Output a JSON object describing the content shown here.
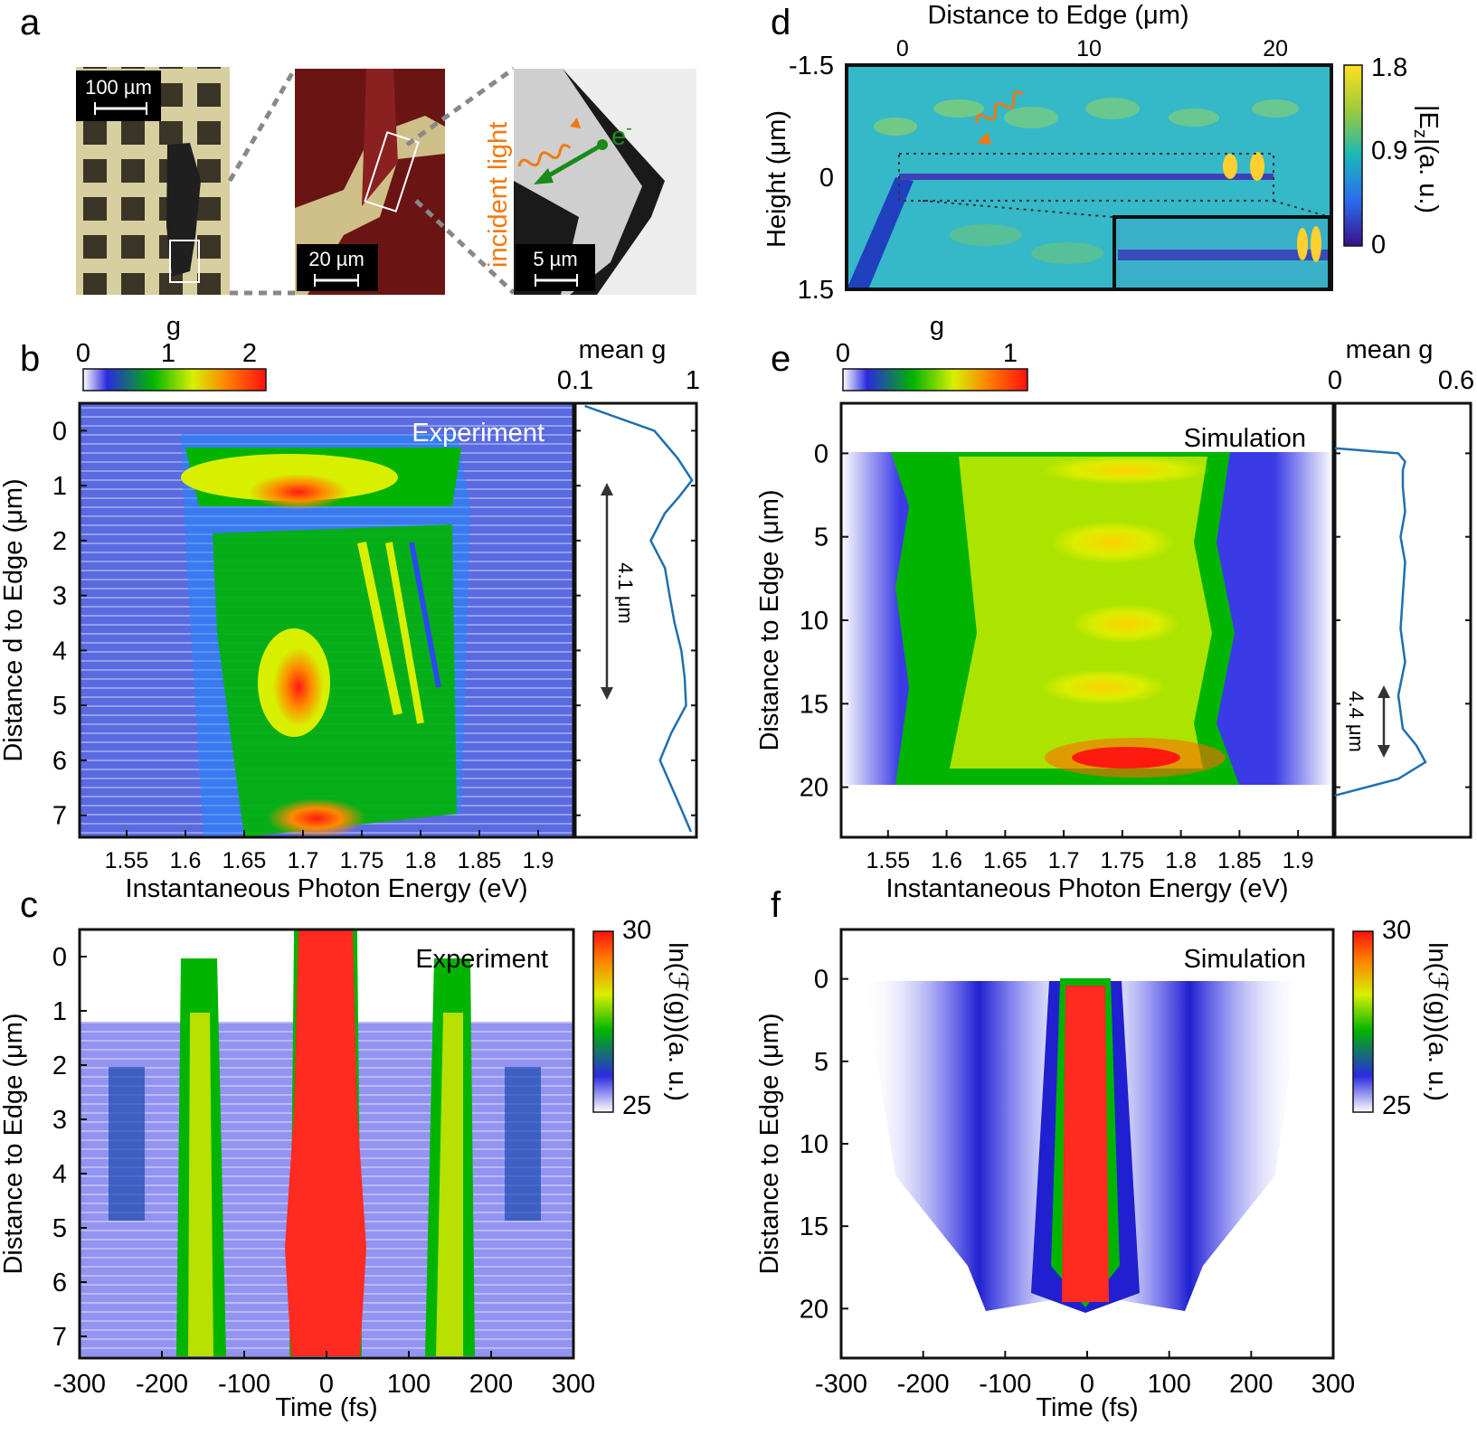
{
  "panel_letters": [
    "a",
    "b",
    "c",
    "d",
    "e",
    "f"
  ],
  "panel_a": {
    "scale_bars": [
      "100 µm",
      "20 µm",
      "5 µm"
    ],
    "incident_light_label": "incident light",
    "electron_label": "e",
    "electron_sup": "-"
  },
  "colorscale_g": {
    "title": "g",
    "ticks_b": [
      "0",
      "1",
      "2"
    ],
    "ticks_e": [
      "0",
      "1"
    ]
  },
  "chart_data": [
    {
      "id": "d",
      "type": "heatmap",
      "title": "",
      "xlabel": "Distance to Edge (μm)",
      "ylabel": "Height (μm)",
      "xticks": [
        "0",
        "10",
        "20"
      ],
      "yticks": [
        "-1.5",
        "0",
        "1.5"
      ],
      "xlim": [
        -3,
        23
      ],
      "ylim": [
        -1.5,
        1.5
      ],
      "colorbar": {
        "label_main": "|E",
        "label_sub": "z",
        "label_end": "|(a. u.)",
        "ticks": [
          "1.8",
          "0.9",
          "0"
        ],
        "range": [
          0,
          1.8
        ]
      }
    },
    {
      "id": "b",
      "type": "heatmap",
      "annotation": "Experiment",
      "xlabel": "Instantaneous Photon Energy (eV)",
      "ylabel": "Distance d to Edge (μm)",
      "xticks": [
        "1.55",
        "1.6",
        "1.65",
        "1.7",
        "1.75",
        "1.8",
        "1.85",
        "1.9"
      ],
      "yticks": [
        "0",
        "1",
        "2",
        "3",
        "4",
        "5",
        "6",
        "7"
      ],
      "xlim": [
        1.51,
        1.93
      ],
      "ylim": [
        -0.5,
        7.4
      ],
      "colorbar": {
        "ticks": [
          "0",
          "1",
          "2"
        ],
        "range": [
          0,
          2
        ]
      },
      "side_plot": {
        "title": "mean g",
        "xticks": [
          "0.1",
          "1"
        ],
        "annotation": "4.1 μm",
        "profile_d": [
          -0.45,
          0,
          0.5,
          0.9,
          1.2,
          1.5,
          2.0,
          2.5,
          3.0,
          3.5,
          4.0,
          4.5,
          5.0,
          5.5,
          6.0,
          6.4,
          6.8,
          7.3
        ],
        "profile_g": [
          0.12,
          0.45,
          0.7,
          0.92,
          0.72,
          0.55,
          0.42,
          0.55,
          0.6,
          0.66,
          0.75,
          0.8,
          0.82,
          0.62,
          0.5,
          0.6,
          0.72,
          0.9
        ]
      }
    },
    {
      "id": "e",
      "type": "heatmap",
      "annotation": "Simulation",
      "xlabel": "Instantaneous Photon Energy (eV)",
      "ylabel": "Distance to Edge (μm)",
      "xticks": [
        "1.55",
        "1.6",
        "1.65",
        "1.7",
        "1.75",
        "1.8",
        "1.85",
        "1.9"
      ],
      "yticks": [
        "0",
        "5",
        "10",
        "15",
        "20"
      ],
      "xlim": [
        1.51,
        1.93
      ],
      "ylim": [
        -3,
        23
      ],
      "colorbar": {
        "ticks": [
          "0",
          "1"
        ],
        "range": [
          0,
          1.1
        ]
      },
      "side_plot": {
        "title": "mean g",
        "xticks": [
          "0",
          "0.6"
        ],
        "annotation": "4.4 μm",
        "profile_d": [
          -0.3,
          0,
          0.5,
          1.0,
          2.0,
          3.5,
          5.0,
          6.5,
          8.5,
          10.5,
          12.5,
          14.5,
          16.5,
          17.5,
          18.5,
          19.5,
          20.5
        ],
        "profile_g": [
          0.0,
          0.28,
          0.31,
          0.3,
          0.3,
          0.31,
          0.29,
          0.31,
          0.3,
          0.29,
          0.31,
          0.28,
          0.3,
          0.36,
          0.4,
          0.28,
          0.0
        ]
      }
    },
    {
      "id": "c",
      "type": "heatmap",
      "annotation": "Experiment",
      "xlabel": "Time (fs)",
      "ylabel": "Distance to Edge (μm)",
      "xticks": [
        "-300",
        "-200",
        "-100",
        "0",
        "100",
        "200",
        "300"
      ],
      "yticks": [
        "0",
        "1",
        "2",
        "3",
        "4",
        "5",
        "6",
        "7"
      ],
      "xlim": [
        -300,
        300
      ],
      "ylim": [
        -0.5,
        7.4
      ],
      "colorbar": {
        "label": "ln(ℱ(g))(a. u.)",
        "ticks": [
          "30",
          "25"
        ],
        "range": [
          25,
          30
        ]
      }
    },
    {
      "id": "f",
      "type": "heatmap",
      "annotation": "Simulation",
      "xlabel": "Time (fs)",
      "ylabel": "Distance to Edge (μm)",
      "xticks": [
        "-300",
        "-200",
        "-100",
        "0",
        "100",
        "200",
        "300"
      ],
      "yticks": [
        "0",
        "5",
        "10",
        "15",
        "20"
      ],
      "xlim": [
        -300,
        300
      ],
      "ylim": [
        -3,
        23
      ],
      "colorbar": {
        "label": "ln(ℱ(g))(a. u.)",
        "ticks": [
          "30",
          "25"
        ],
        "range": [
          25,
          30
        ]
      }
    }
  ]
}
